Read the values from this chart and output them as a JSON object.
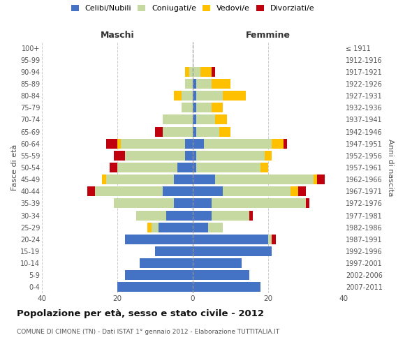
{
  "age_groups": [
    "0-4",
    "5-9",
    "10-14",
    "15-19",
    "20-24",
    "25-29",
    "30-34",
    "35-39",
    "40-44",
    "45-49",
    "50-54",
    "55-59",
    "60-64",
    "65-69",
    "70-74",
    "75-79",
    "80-84",
    "85-89",
    "90-94",
    "95-99",
    "100+"
  ],
  "birth_years": [
    "2007-2011",
    "2002-2006",
    "1997-2001",
    "1992-1996",
    "1987-1991",
    "1982-1986",
    "1977-1981",
    "1972-1976",
    "1967-1971",
    "1962-1966",
    "1957-1961",
    "1952-1956",
    "1947-1951",
    "1942-1946",
    "1937-1941",
    "1932-1936",
    "1927-1931",
    "1922-1926",
    "1917-1921",
    "1912-1916",
    "≤ 1911"
  ],
  "males": {
    "celibi": [
      20,
      18,
      14,
      10,
      18,
      9,
      7,
      5,
      8,
      5,
      4,
      2,
      2,
      0,
      0,
      0,
      0,
      0,
      0,
      0,
      0
    ],
    "coniugati": [
      0,
      0,
      0,
      0,
      0,
      2,
      8,
      16,
      18,
      18,
      16,
      16,
      17,
      8,
      8,
      3,
      3,
      2,
      1,
      0,
      0
    ],
    "vedovi": [
      0,
      0,
      0,
      0,
      0,
      1,
      0,
      0,
      0,
      1,
      0,
      0,
      1,
      0,
      0,
      0,
      2,
      0,
      1,
      0,
      0
    ],
    "divorziati": [
      0,
      0,
      0,
      0,
      0,
      0,
      0,
      0,
      2,
      0,
      2,
      3,
      3,
      2,
      0,
      0,
      0,
      0,
      0,
      0,
      0
    ]
  },
  "females": {
    "nubili": [
      18,
      15,
      13,
      21,
      20,
      4,
      5,
      5,
      8,
      6,
      1,
      1,
      3,
      1,
      1,
      1,
      1,
      1,
      0,
      0,
      0
    ],
    "coniugate": [
      0,
      0,
      0,
      0,
      1,
      4,
      10,
      25,
      18,
      26,
      17,
      18,
      18,
      6,
      5,
      4,
      7,
      4,
      2,
      0,
      0
    ],
    "vedove": [
      0,
      0,
      0,
      0,
      0,
      0,
      0,
      0,
      2,
      1,
      2,
      2,
      3,
      3,
      3,
      3,
      6,
      5,
      3,
      0,
      0
    ],
    "divorziate": [
      0,
      0,
      0,
      0,
      1,
      0,
      1,
      1,
      2,
      2,
      0,
      0,
      1,
      0,
      0,
      0,
      0,
      0,
      1,
      0,
      0
    ]
  },
  "colors": {
    "celibi": "#4472c4",
    "coniugati": "#c5d9a0",
    "vedovi": "#ffc000",
    "divorziati": "#c0000c"
  },
  "xlim": 40,
  "title": "Popolazione per età, sesso e stato civile - 2012",
  "subtitle": "COMUNE DI CIMONE (TN) - Dati ISTAT 1° gennaio 2012 - Elaborazione TUTTITALIA.IT",
  "ylabel_left": "Fasce di età",
  "ylabel_right": "Anni di nascita",
  "xlabel_left": "Maschi",
  "xlabel_right": "Femmine"
}
